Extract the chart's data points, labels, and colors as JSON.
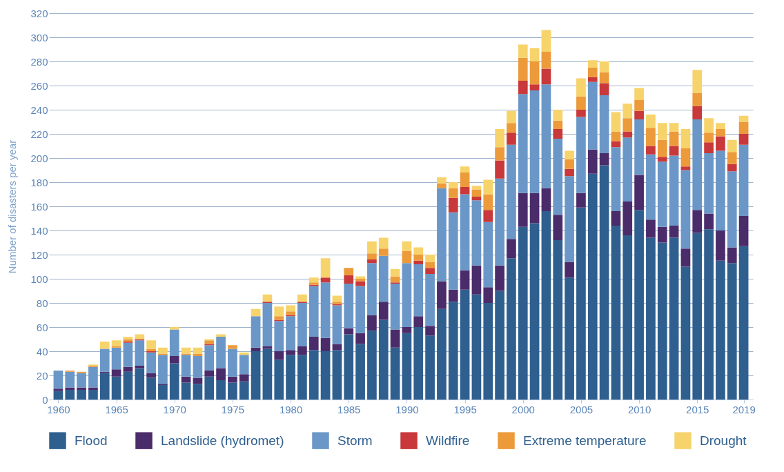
{
  "chart_data": {
    "type": "bar",
    "stacked": true,
    "ylabel": "Number of disasters per year",
    "x": [
      1960,
      1961,
      1962,
      1963,
      1964,
      1965,
      1966,
      1967,
      1968,
      1969,
      1970,
      1971,
      1972,
      1973,
      1974,
      1975,
      1976,
      1977,
      1978,
      1979,
      1980,
      1981,
      1982,
      1983,
      1984,
      1985,
      1986,
      1987,
      1988,
      1989,
      1990,
      1991,
      1992,
      1993,
      1994,
      1995,
      1996,
      1997,
      1998,
      1999,
      2000,
      2001,
      2002,
      2003,
      2004,
      2005,
      2006,
      2007,
      2008,
      2009,
      2010,
      2011,
      2012,
      2013,
      2014,
      2015,
      2016,
      2017,
      2018,
      2019
    ],
    "xlim": [
      1959.5,
      2019.5
    ],
    "xticks": [
      1960,
      1965,
      1970,
      1975,
      1980,
      1985,
      1990,
      1995,
      2000,
      2005,
      2010,
      2015,
      2019
    ],
    "ylim": [
      0,
      320
    ],
    "yticks": [
      0,
      20,
      40,
      60,
      80,
      100,
      120,
      140,
      160,
      180,
      200,
      220,
      240,
      260,
      280,
      300,
      320
    ],
    "grid": "y",
    "legend": "bottom",
    "series": [
      {
        "name": "Flood",
        "color": "#2f5f8f",
        "values": [
          7,
          8,
          8,
          8,
          22,
          19,
          23,
          26,
          18,
          12,
          30,
          14,
          13,
          19,
          16,
          14,
          15,
          40,
          42,
          33,
          37,
          37,
          41,
          40,
          41,
          54,
          46,
          57,
          66,
          43,
          55,
          60,
          53,
          75,
          81,
          91,
          87,
          80,
          90,
          117,
          143,
          146,
          156,
          132,
          101,
          159,
          187,
          194,
          144,
          136,
          157,
          134,
          130,
          134,
          110,
          138,
          141,
          115,
          113,
          127
        ]
      },
      {
        "name": "Landslide (hydromet)",
        "color": "#4b2c6a",
        "values": [
          2,
          2,
          2,
          2,
          1,
          6,
          4,
          2,
          4,
          1,
          6,
          5,
          5,
          5,
          10,
          5,
          6,
          3,
          2,
          7,
          4,
          7,
          11,
          11,
          5,
          5,
          9,
          13,
          15,
          15,
          5,
          9,
          8,
          23,
          10,
          16,
          24,
          13,
          21,
          16,
          28,
          25,
          19,
          21,
          13,
          12,
          20,
          10,
          12,
          28,
          29,
          15,
          13,
          10,
          15,
          19,
          13,
          25,
          13,
          25
        ]
      },
      {
        "name": "Storm",
        "color": "#6a97c7",
        "values": [
          15,
          13,
          12,
          17,
          19,
          18,
          20,
          21,
          17,
          24,
          22,
          18,
          18,
          21,
          26,
          23,
          16,
          26,
          36,
          25,
          28,
          36,
          42,
          46,
          32,
          37,
          39,
          43,
          38,
          38,
          53,
          43,
          43,
          77,
          64,
          63,
          54,
          54,
          72,
          78,
          82,
          85,
          86,
          63,
          71,
          63,
          56,
          48,
          53,
          53,
          46,
          54,
          54,
          58,
          65,
          75,
          50,
          66,
          63,
          59
        ]
      },
      {
        "name": "Wildfire",
        "color": "#c9383a",
        "values": [
          0,
          0,
          0,
          0,
          0,
          0,
          1,
          1,
          1,
          0,
          0,
          0,
          0,
          1,
          0,
          0,
          0,
          0,
          1,
          1,
          1,
          1,
          1,
          4,
          1,
          7,
          4,
          3,
          0,
          1,
          0,
          3,
          5,
          0,
          12,
          6,
          3,
          10,
          15,
          10,
          11,
          5,
          13,
          8,
          6,
          6,
          4,
          10,
          5,
          5,
          7,
          7,
          4,
          8,
          3,
          11,
          9,
          12,
          6,
          9
        ]
      },
      {
        "name": "Extreme temperature",
        "color": "#ec9a3a",
        "values": [
          0,
          1,
          1,
          1,
          0,
          1,
          2,
          0,
          2,
          1,
          0,
          1,
          2,
          3,
          0,
          3,
          0,
          0,
          0,
          3,
          3,
          0,
          2,
          0,
          2,
          6,
          2,
          5,
          6,
          5,
          10,
          5,
          5,
          4,
          8,
          12,
          6,
          13,
          11,
          8,
          19,
          19,
          14,
          7,
          8,
          11,
          8,
          9,
          8,
          11,
          9,
          15,
          14,
          12,
          15,
          11,
          8,
          6,
          10,
          10
        ]
      },
      {
        "name": "Drought",
        "color": "#f7d36b",
        "values": [
          0,
          0,
          0,
          1,
          6,
          5,
          2,
          4,
          7,
          5,
          2,
          5,
          5,
          1,
          2,
          0,
          2,
          6,
          6,
          8,
          5,
          6,
          4,
          16,
          5,
          0,
          2,
          10,
          9,
          6,
          8,
          6,
          6,
          5,
          5,
          5,
          3,
          12,
          15,
          10,
          11,
          11,
          18,
          9,
          7,
          15,
          6,
          9,
          16,
          12,
          10,
          11,
          14,
          7,
          16,
          19,
          12,
          5,
          10,
          5
        ]
      }
    ]
  }
}
